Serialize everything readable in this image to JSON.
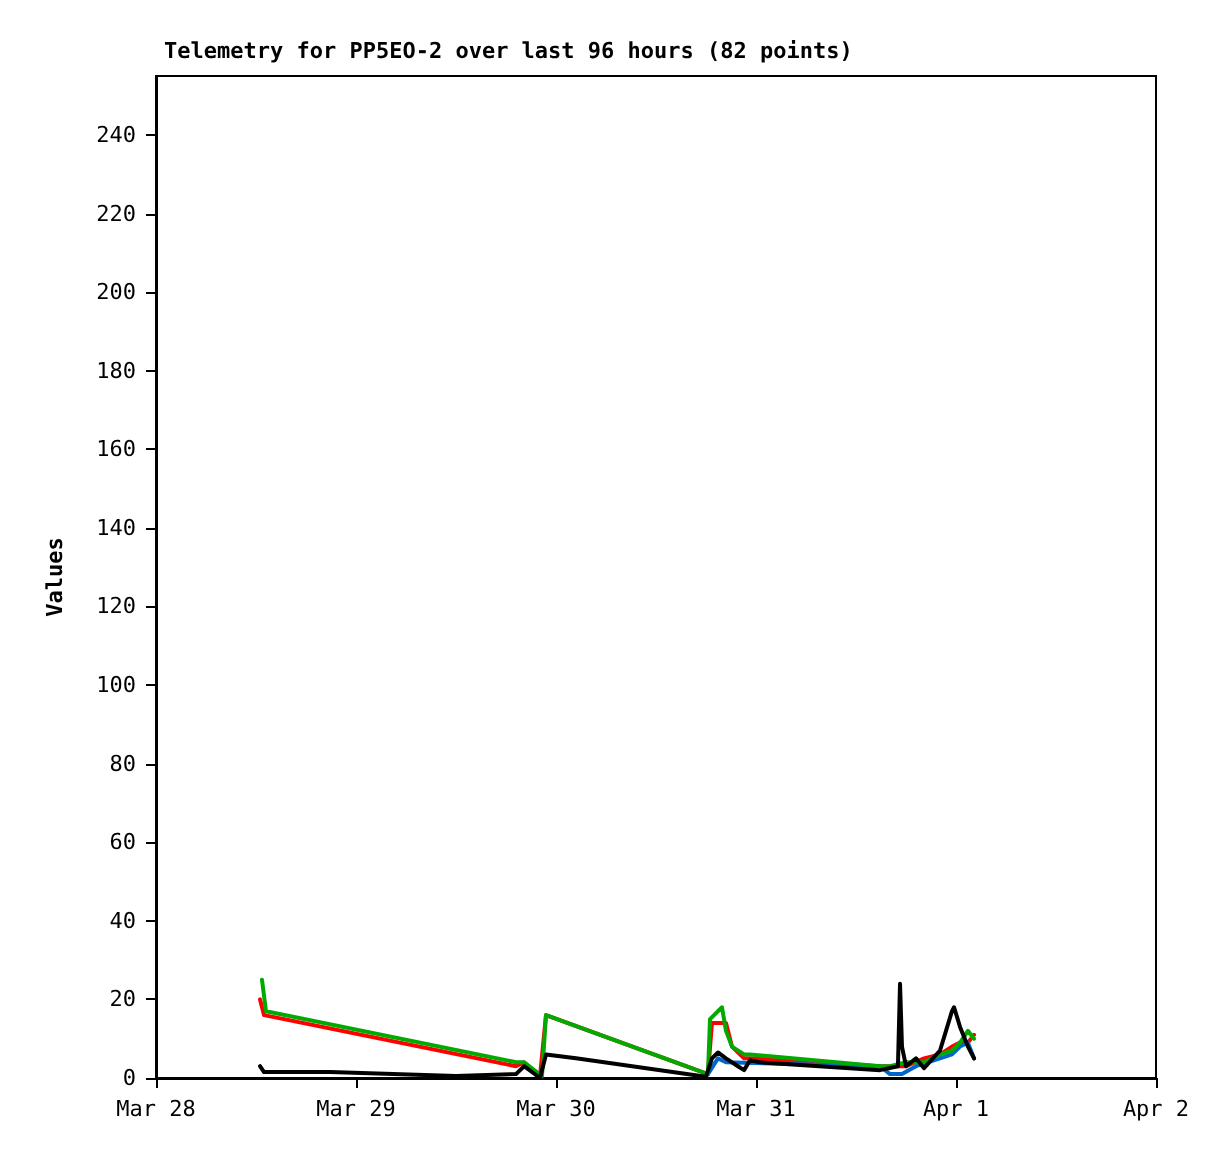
{
  "chart_data": {
    "type": "line",
    "title": "Telemetry for PP5EO-2 over last 96 hours (82 points)",
    "ylabel": "Values",
    "xlim": [
      "--03-28",
      "--04-02"
    ],
    "xticks": [
      {
        "value": "--03-28",
        "label": "Mar 28"
      },
      {
        "value": "--03-29",
        "label": "Mar 29"
      },
      {
        "value": "--03-30",
        "label": "Mar 30"
      },
      {
        "value": "--03-31",
        "label": "Mar 31"
      },
      {
        "value": "--04-01",
        "label": "Apr 1"
      },
      {
        "value": "--04-02",
        "label": "Apr 2"
      }
    ],
    "ylim": [
      0,
      255
    ],
    "yticks": [
      0,
      20,
      40,
      60,
      80,
      100,
      120,
      140,
      160,
      180,
      200,
      220,
      240
    ],
    "grid": false,
    "marker": "none",
    "line_style": "solid",
    "series": [
      {
        "color": "#ff0000",
        "x": [
          "--03-28T12:29",
          "--03-28T12:58",
          "--03-29T19:12",
          "--03-29T20:10",
          "--03-29T22:05",
          "--03-29T22:48",
          "--03-30T18:14",
          "--03-30T18:43",
          "--03-30T19:26",
          "--03-30T20:24",
          "--03-30T21:07",
          "--03-30T22:34",
          "--03-30T23:17",
          "--03-31T14:53",
          "--03-31T18:00",
          "--03-31T20:10",
          "--03-31T22:05",
          "--03-31T23:31",
          "--04-01T00:29",
          "--04-01T01:26",
          "--04-01T02:10"
        ],
        "values": [
          20,
          16,
          3,
          4,
          0.5,
          16,
          1,
          14,
          14,
          14,
          8,
          5,
          5,
          3,
          3,
          5,
          6,
          8,
          9,
          9,
          11
        ]
      },
      {
        "color": "#0066cc",
        "x": [
          "--03-30T18:14",
          "--03-30T19:26",
          "--03-30T20:24",
          "--03-31T14:53",
          "--03-31T16:05",
          "--03-31T17:31",
          "--03-31T19:12",
          "--03-31T22:05",
          "--03-31T23:31",
          "--04-01T00:29",
          "--04-01T01:26",
          "--04-01T02:10"
        ],
        "values": [
          1,
          5,
          4,
          3,
          1,
          1,
          3,
          5,
          6,
          8,
          9,
          5
        ]
      },
      {
        "color": "#00aa00",
        "x": [
          "--03-28T12:43",
          "--03-28T13:12",
          "--03-29T19:12",
          "--03-29T20:10",
          "--03-29T22:19",
          "--03-29T22:48",
          "--03-30T18:14",
          "--03-30T18:29",
          "--03-30T19:55",
          "--03-30T20:24",
          "--03-30T21:07",
          "--03-30T22:34",
          "--03-30T23:17",
          "--03-31T14:53",
          "--03-31T16:05",
          "--03-31T18:00",
          "--03-31T20:10",
          "--03-31T22:05",
          "--03-31T23:31",
          "--04-01T00:29",
          "--04-01T01:26",
          "--04-01T02:10"
        ],
        "values": [
          25,
          17,
          4,
          4,
          0.5,
          16,
          1,
          15,
          18,
          12,
          8,
          6,
          6,
          3,
          3,
          4,
          4,
          6,
          7,
          9,
          12,
          10
        ]
      },
      {
        "color": "#000000",
        "x": [
          "--03-28T12:29",
          "--03-28T12:58",
          "--03-28T20:53",
          "--03-29T12:00",
          "--03-29T19:12",
          "--03-29T20:10",
          "--03-29T22:05",
          "--03-29T22:48",
          "--03-30T02:24",
          "--03-30T18:00",
          "--03-30T18:43",
          "--03-30T19:26",
          "--03-30T20:24",
          "--03-30T21:50",
          "--03-30T22:34",
          "--03-30T23:17",
          "--03-31T00:29",
          "--03-31T14:53",
          "--03-31T17:02",
          "--03-31T17:17",
          "--03-31T17:31",
          "--03-31T18:00",
          "--03-31T19:12",
          "--03-31T20:10",
          "--03-31T22:05",
          "--03-31T22:48",
          "--03-31T23:31",
          "--03-31T23:46",
          "--04-01T00:29",
          "--04-01T01:26",
          "--04-01T02:10"
        ],
        "values": [
          3,
          1.5,
          1.5,
          0.5,
          1,
          3,
          0,
          6,
          5,
          0.3,
          5,
          6.5,
          5,
          3,
          2,
          4.5,
          4,
          2,
          3,
          24,
          8,
          3,
          5,
          2.5,
          7,
          12,
          17,
          18,
          13,
          8,
          5
        ]
      }
    ]
  }
}
